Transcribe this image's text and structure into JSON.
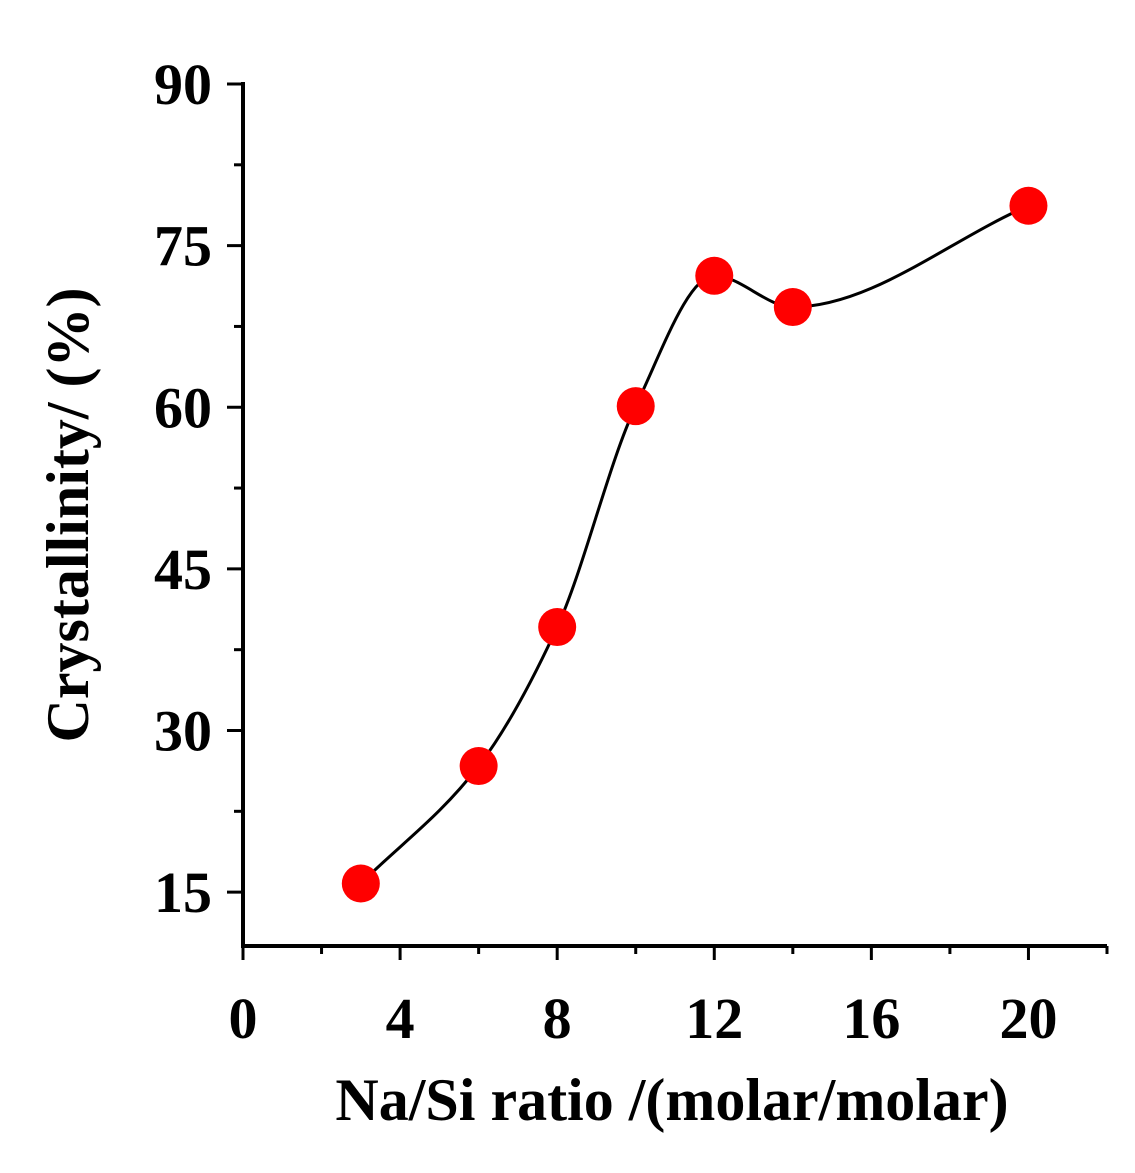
{
  "chart_data": {
    "type": "scatter",
    "title": "",
    "xlabel": "Na/Si ratio /(molar/molar)",
    "ylabel": "Crystallinity/ (%)",
    "xlim": [
      0,
      22
    ],
    "ylim": [
      10,
      90
    ],
    "xticks": [
      0,
      4,
      8,
      12,
      16,
      20
    ],
    "yticks": [
      15,
      30,
      45,
      60,
      75,
      90
    ],
    "x_minor_step": 2,
    "y_minor_step": 7.5,
    "grid": false,
    "series": [
      {
        "name": "Crystallinity",
        "marker_color": "#ff0000",
        "line_color": "#000000",
        "line": "smooth-spline",
        "x": [
          3,
          6,
          8,
          10,
          12,
          14,
          20
        ],
        "y": [
          15.8,
          26.7,
          39.6,
          60.1,
          72.2,
          69.3,
          78.7
        ]
      }
    ]
  }
}
